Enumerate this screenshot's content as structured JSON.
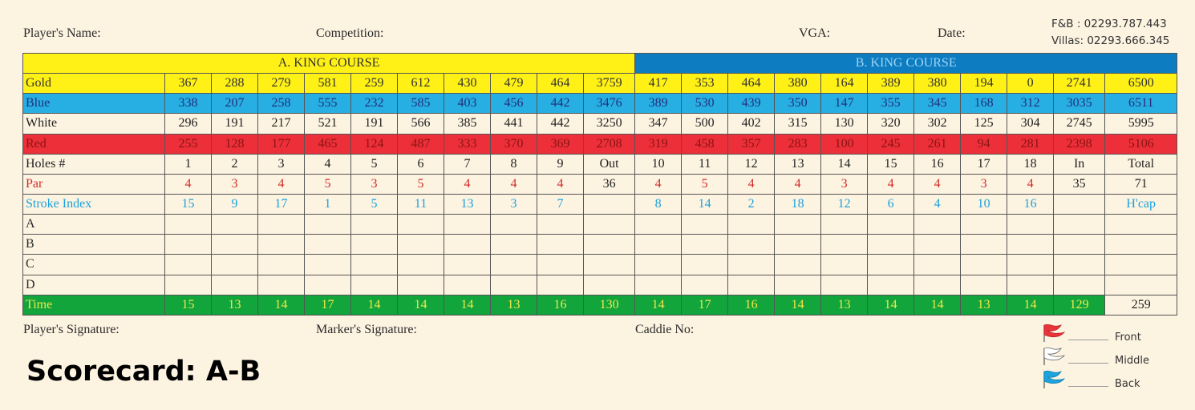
{
  "header": {
    "players_name": "Player's Name:",
    "competition": "Competition:",
    "vga": "VGA:",
    "date": "Date:",
    "contact_fb": "F&B : 02293.787.443",
    "contact_villas": "Villas: 02293.666.345"
  },
  "courses": {
    "a": "A. KING COURSE",
    "b": "B. KING COURSE"
  },
  "tees": {
    "gold": {
      "label": "Gold",
      "values": [
        "367",
        "288",
        "279",
        "581",
        "259",
        "612",
        "430",
        "479",
        "464",
        "3759",
        "417",
        "353",
        "464",
        "380",
        "164",
        "389",
        "380",
        "194",
        "0",
        "2741",
        "6500"
      ]
    },
    "blue": {
      "label": "Blue",
      "values": [
        "338",
        "207",
        "258",
        "555",
        "232",
        "585",
        "403",
        "456",
        "442",
        "3476",
        "389",
        "530",
        "439",
        "350",
        "147",
        "355",
        "345",
        "168",
        "312",
        "3035",
        "6511"
      ]
    },
    "white": {
      "label": "White",
      "values": [
        "296",
        "191",
        "217",
        "521",
        "191",
        "566",
        "385",
        "441",
        "442",
        "3250",
        "347",
        "500",
        "402",
        "315",
        "130",
        "320",
        "302",
        "125",
        "304",
        "2745",
        "5995"
      ]
    },
    "red": {
      "label": "Red",
      "values": [
        "255",
        "128",
        "177",
        "465",
        "124",
        "487",
        "333",
        "370",
        "369",
        "2708",
        "319",
        "458",
        "357",
        "283",
        "100",
        "245",
        "261",
        "94",
        "281",
        "2398",
        "5106"
      ]
    }
  },
  "holes": {
    "label": "Holes #",
    "values": [
      "1",
      "2",
      "3",
      "4",
      "5",
      "6",
      "7",
      "8",
      "9",
      "Out",
      "10",
      "11",
      "12",
      "13",
      "14",
      "15",
      "16",
      "17",
      "18",
      "In",
      "Total"
    ]
  },
  "par": {
    "label": "Par",
    "values": [
      "4",
      "3",
      "4",
      "5",
      "3",
      "5",
      "4",
      "4",
      "4",
      "36",
      "4",
      "5",
      "4",
      "4",
      "3",
      "4",
      "4",
      "3",
      "4",
      "35",
      "71"
    ]
  },
  "stroke_index": {
    "label": "Stroke Index",
    "values": [
      "15",
      "9",
      "17",
      "1",
      "5",
      "11",
      "13",
      "3",
      "7",
      "",
      "8",
      "14",
      "2",
      "18",
      "12",
      "6",
      "4",
      "10",
      "16",
      "",
      "H'cap"
    ]
  },
  "players": [
    "A",
    "B",
    "C",
    "D"
  ],
  "time": {
    "label": "Time",
    "values": [
      "15",
      "13",
      "14",
      "17",
      "14",
      "14",
      "14",
      "13",
      "16",
      "130",
      "14",
      "17",
      "16",
      "14",
      "13",
      "14",
      "14",
      "13",
      "14",
      "129",
      "259"
    ]
  },
  "footer": {
    "player_signature": "Player's Signature:",
    "marker_signature": "Marker's Signature:",
    "caddie_no": "Caddie No:"
  },
  "tee_markers": [
    {
      "label": "Front",
      "color": "#e8343b"
    },
    {
      "label": "Middle",
      "color": "#ffffff"
    },
    {
      "label": "Back",
      "color": "#1da3dd"
    }
  ],
  "title": "Scorecard: A-B"
}
